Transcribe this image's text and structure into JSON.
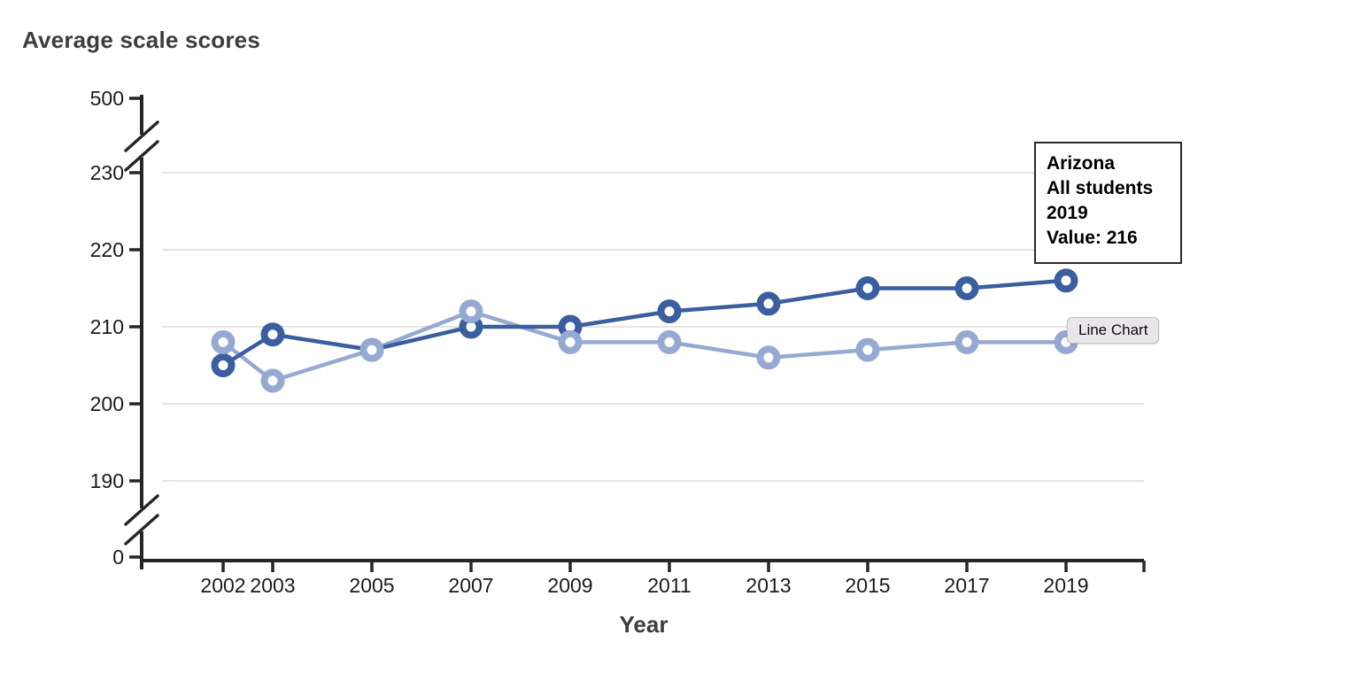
{
  "chart": {
    "title": "Average scale scores"
  },
  "chart_data": {
    "type": "line",
    "title": "Average scale scores",
    "xlabel": "Year",
    "ylabel": "Average scale scores",
    "x": [
      2002,
      2003,
      2005,
      2007,
      2009,
      2011,
      2013,
      2015,
      2017,
      2019
    ],
    "y_ticks_linear": [
      190,
      200,
      210,
      220,
      230
    ],
    "y_tick_top": 500,
    "y_tick_bottom": 0,
    "axis_breaks": true,
    "grid": true,
    "legend_position": "none",
    "series": [
      {
        "name": "lighter-blue-series",
        "color": "#95a9d2",
        "values": [
          208,
          203,
          207,
          212,
          208,
          208,
          206,
          207,
          208,
          208
        ]
      },
      {
        "name": "arizona-all-students",
        "color": "#3a5e9e",
        "values": [
          205,
          209,
          207,
          210,
          210,
          212,
          213,
          215,
          215,
          216
        ]
      }
    ]
  },
  "tooltip": {
    "lines": [
      "Arizona",
      "All students",
      "2019",
      "Value: 216"
    ]
  },
  "hover_label": {
    "text": "Line Chart"
  },
  "colors": {
    "axis": "#262626",
    "grid": "#e7e5e2",
    "tick_label": "#1b1b1b",
    "title_text": "#3d3d3d",
    "series_dark": "#3a5e9e",
    "series_light": "#95a9d2"
  }
}
